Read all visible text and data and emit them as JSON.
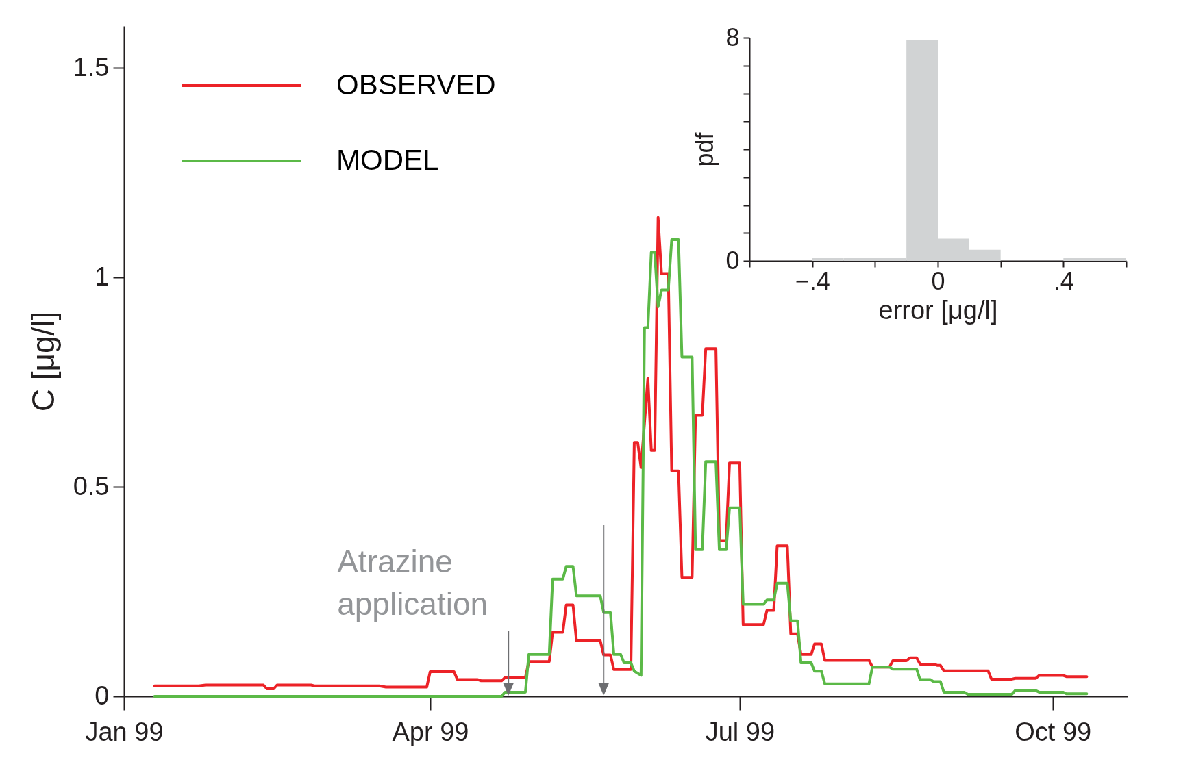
{
  "chart_data": [
    {
      "type": "line",
      "ylabel": "C [μg/l]",
      "xlim": [
        "1999-01-01",
        "1999-10-23"
      ],
      "xticks": [
        {
          "value": "1999-01-01",
          "label": "Jan 99"
        },
        {
          "value": "1999-04-01",
          "label": "Apr 99"
        },
        {
          "value": "1999-07-01",
          "label": "Jul 99"
        },
        {
          "value": "1999-10-01",
          "label": "Oct 99"
        }
      ],
      "ylim": [
        0,
        1.6
      ],
      "yticks": [
        0,
        0.5,
        1,
        1.5
      ],
      "legend": "top left",
      "series": [
        {
          "name": "OBSERVED",
          "color": "#ec2227",
          "x": [
            "1999-01-10",
            "1999-01-23",
            "1999-01-25",
            "1999-02-11",
            "1999-02-12",
            "1999-02-14",
            "1999-02-15",
            "1999-02-25",
            "1999-02-26",
            "1999-03-17",
            "1999-03-19",
            "1999-03-31",
            "1999-04-01",
            "1999-04-08",
            "1999-04-09",
            "1999-04-15",
            "1999-04-16",
            "1999-04-22",
            "1999-04-23",
            "1999-04-29",
            "1999-04-30",
            "1999-05-06",
            "1999-05-07",
            "1999-05-10",
            "1999-05-11",
            "1999-05-13",
            "1999-05-14",
            "1999-05-21",
            "1999-05-22",
            "1999-05-24",
            "1999-05-25",
            "1999-05-30",
            "1999-05-31",
            "1999-06-01",
            "1999-06-02",
            "1999-06-04",
            "1999-06-05",
            "1999-06-06",
            "1999-06-07",
            "1999-06-08",
            "1999-06-10",
            "1999-06-11",
            "1999-06-13",
            "1999-06-14",
            "1999-06-17",
            "1999-06-18",
            "1999-06-20",
            "1999-06-21",
            "1999-06-24",
            "1999-06-25",
            "1999-06-27",
            "1999-06-28",
            "1999-07-01",
            "1999-07-02",
            "1999-07-08",
            "1999-07-09",
            "1999-07-11",
            "1999-07-12",
            "1999-07-15",
            "1999-07-16",
            "1999-07-18",
            "1999-07-19",
            "1999-07-22",
            "1999-07-23",
            "1999-07-25",
            "1999-07-26",
            "1999-08-08",
            "1999-08-09",
            "1999-08-14",
            "1999-08-15",
            "1999-08-19",
            "1999-08-20",
            "1999-08-22",
            "1999-08-23",
            "1999-08-27",
            "1999-08-28",
            "1999-08-29",
            "1999-08-30",
            "1999-09-12",
            "1999-09-13",
            "1999-09-19",
            "1999-09-20",
            "1999-09-26",
            "1999-09-27",
            "1999-10-04",
            "1999-10-05",
            "1999-10-11"
          ],
          "values": [
            0.025,
            0.025,
            0.027,
            0.027,
            0.018,
            0.018,
            0.027,
            0.027,
            0.025,
            0.025,
            0.022,
            0.022,
            0.059,
            0.059,
            0.04,
            0.04,
            0.037,
            0.037,
            0.045,
            0.045,
            0.083,
            0.083,
            0.153,
            0.153,
            0.218,
            0.218,
            0.133,
            0.133,
            0.099,
            0.099,
            0.064,
            0.064,
            0.606,
            0.606,
            0.546,
            0.759,
            0.587,
            0.587,
            1.143,
            1.009,
            1.009,
            0.538,
            0.538,
            0.284,
            0.284,
            0.671,
            0.671,
            0.83,
            0.83,
            0.372,
            0.372,
            0.557,
            0.557,
            0.171,
            0.171,
            0.205,
            0.205,
            0.359,
            0.359,
            0.149,
            0.149,
            0.1,
            0.1,
            0.125,
            0.125,
            0.086,
            0.086,
            0.07,
            0.07,
            0.085,
            0.085,
            0.092,
            0.092,
            0.077,
            0.077,
            0.074,
            0.074,
            0.061,
            0.061,
            0.041,
            0.041,
            0.043,
            0.043,
            0.05,
            0.05,
            0.047,
            0.047
          ]
        },
        {
          "name": "MODEL",
          "color": "#5bb947",
          "x": [
            "1999-01-10",
            "1999-04-22",
            "1999-04-23",
            "1999-04-29",
            "1999-04-30",
            "1999-05-06",
            "1999-05-07",
            "1999-05-10",
            "1999-05-11",
            "1999-05-13",
            "1999-05-14",
            "1999-05-21",
            "1999-05-22",
            "1999-05-24",
            "1999-05-25",
            "1999-05-27",
            "1999-05-28",
            "1999-05-30",
            "1999-05-31",
            "1999-06-02",
            "1999-06-03",
            "1999-06-04",
            "1999-06-05",
            "1999-06-06",
            "1999-06-07",
            "1999-06-08",
            "1999-06-10",
            "1999-06-11",
            "1999-06-13",
            "1999-06-14",
            "1999-06-17",
            "1999-06-18",
            "1999-06-20",
            "1999-06-21",
            "1999-06-24",
            "1999-06-25",
            "1999-06-27",
            "1999-06-28",
            "1999-07-01",
            "1999-07-02",
            "1999-07-08",
            "1999-07-09",
            "1999-07-11",
            "1999-07-12",
            "1999-07-15",
            "1999-07-16",
            "1999-07-18",
            "1999-07-19",
            "1999-07-22",
            "1999-07-23",
            "1999-07-25",
            "1999-07-26",
            "1999-08-08",
            "1999-08-09",
            "1999-08-14",
            "1999-08-15",
            "1999-08-22",
            "1999-08-23",
            "1999-08-26",
            "1999-08-27",
            "1999-08-29",
            "1999-08-30",
            "1999-09-05",
            "1999-09-06",
            "1999-09-19",
            "1999-09-20",
            "1999-09-26",
            "1999-09-27",
            "1999-10-04",
            "1999-10-05",
            "1999-10-11"
          ],
          "values": [
            0,
            0,
            0.01,
            0.01,
            0.1,
            0.1,
            0.28,
            0.28,
            0.31,
            0.31,
            0.24,
            0.24,
            0.2,
            0.2,
            0.1,
            0.1,
            0.08,
            0.08,
            0.06,
            0.05,
            0.88,
            0.88,
            1.06,
            1.06,
            0.93,
            0.97,
            0.97,
            1.09,
            1.09,
            0.81,
            0.81,
            0.35,
            0.35,
            0.56,
            0.56,
            0.35,
            0.35,
            0.45,
            0.45,
            0.22,
            0.22,
            0.23,
            0.23,
            0.27,
            0.27,
            0.18,
            0.18,
            0.08,
            0.08,
            0.06,
            0.06,
            0.03,
            0.03,
            0.07,
            0.07,
            0.065,
            0.065,
            0.04,
            0.04,
            0.035,
            0.035,
            0.01,
            0.01,
            0.005,
            0.005,
            0.014,
            0.014,
            0.01,
            0.01,
            0.006,
            0.006
          ]
        }
      ],
      "annotations": [
        {
          "text": "Atrazine application",
          "x": "1999-04-24",
          "y": 0
        }
      ],
      "ref_lines": [
        {
          "axis": "x",
          "value": "1999-04-24",
          "color": "#6d6e71"
        },
        {
          "axis": "x",
          "value": "1999-05-22",
          "color": "#6d6e71"
        }
      ]
    },
    {
      "type": "histogram",
      "xlabel": "error [μg/l]",
      "ylabel": "pdf",
      "bins": [
        -0.6,
        -0.5,
        -0.4,
        -0.3,
        -0.2,
        -0.1,
        0,
        0.1,
        0.2,
        0.3,
        0.4,
        0.5,
        0.6
      ],
      "values": [
        0,
        0,
        0.1,
        0.1,
        0.1,
        7.9,
        0.8,
        0.4,
        0,
        0,
        0.1,
        0.1
      ],
      "color": "#d1d3d4",
      "xlim": [
        -0.6,
        0.6
      ],
      "xticks": [
        {
          "value": -0.6,
          "label": null
        },
        {
          "value": -0.4,
          "label": "−.4"
        },
        {
          "value": -0.2,
          "label": null
        },
        0,
        {
          "value": 0.2,
          "label": null
        },
        {
          "value": 0.4,
          "label": ".4"
        },
        {
          "value": 0.6,
          "label": null
        }
      ],
      "ylim": [
        0,
        8
      ],
      "yticks": [
        0,
        {
          "value": 1,
          "label": null
        },
        {
          "value": 2,
          "label": null
        },
        {
          "value": 3,
          "label": null
        },
        {
          "value": 4,
          "label": null
        },
        {
          "value": 5,
          "label": null
        },
        {
          "value": 6,
          "label": null
        },
        {
          "value": 7,
          "label": null
        },
        8
      ]
    }
  ]
}
